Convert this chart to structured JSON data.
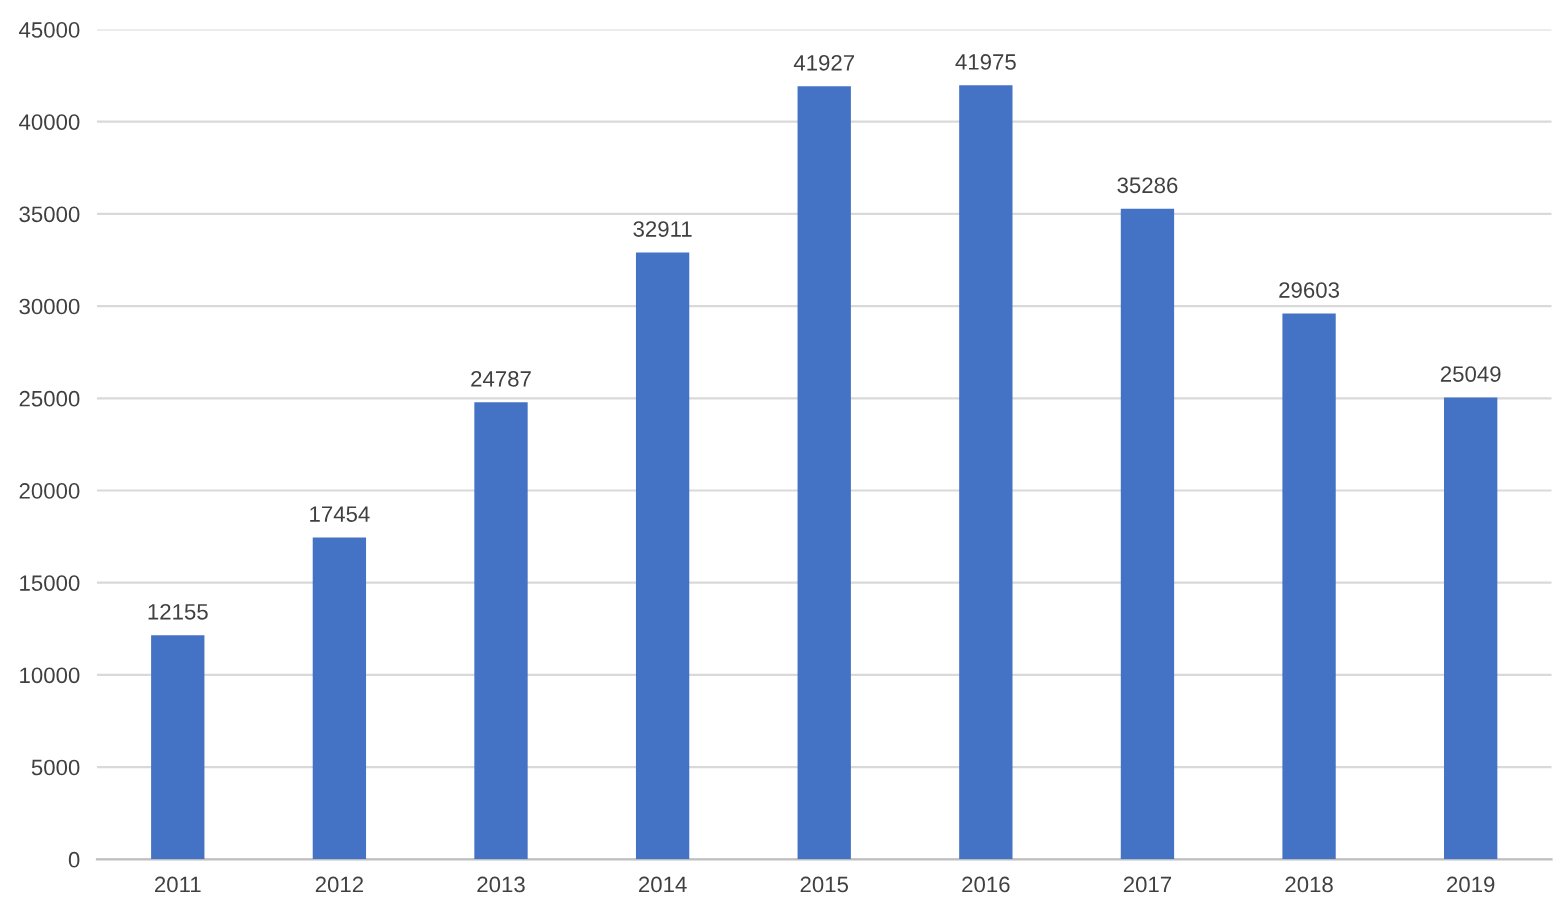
{
  "chart_data": {
    "type": "bar",
    "categories": [
      "2011",
      "2012",
      "2013",
      "2014",
      "2015",
      "2016",
      "2017",
      "2018",
      "2019"
    ],
    "values": [
      12155,
      17454,
      24787,
      32911,
      41927,
      41975,
      35286,
      29603,
      25049
    ],
    "color": "#4472c4",
    "ylim": [
      0,
      45000
    ],
    "yticks": [
      0,
      5000,
      10000,
      15000,
      20000,
      25000,
      30000,
      35000,
      40000,
      45000
    ],
    "grid": "y",
    "data_labels": true
  }
}
